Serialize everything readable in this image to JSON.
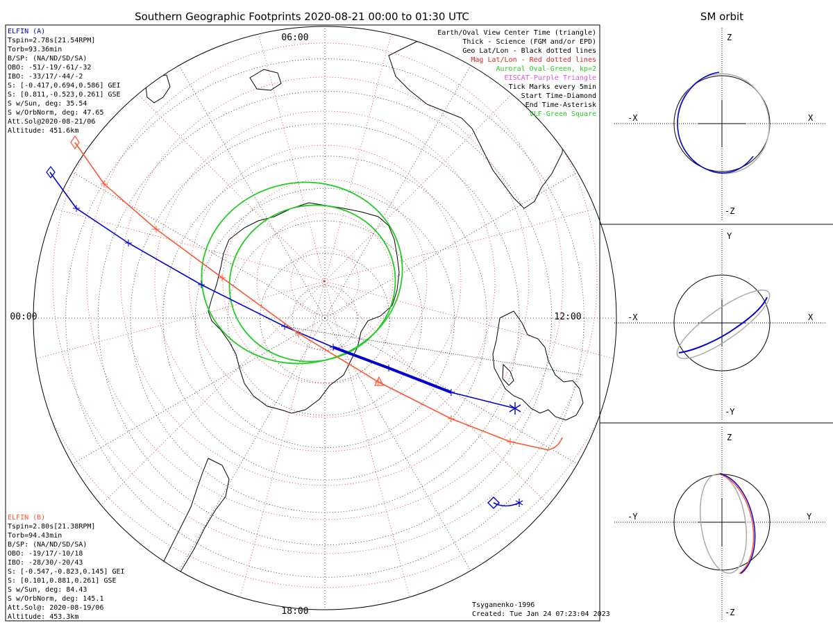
{
  "title": "Southern Geographic Footprints 2020-08-21 00:00 to 01:30 UTC",
  "sm_title": "SM orbit",
  "colors": {
    "elfin_a": "#0000cc",
    "elfin_b": "#ff5533",
    "oval": "#22cc22",
    "mag_grid": "#dd2222",
    "geo_grid": "#222222",
    "legend_purple": "#dd55dd",
    "sm_gray": "#aaaaaa"
  },
  "hour_labels": {
    "top": "06:00",
    "left": "00:00",
    "right": "12:00",
    "bottom": "18:00"
  },
  "elfin_a": {
    "lines": [
      "ELFIN (A)",
      "Tspin=2.78s[21.54RPM]",
      "Torb=93.36min",
      "B/SP: (NA/ND/SD/SA)",
      "OBO: -51/-19/-61/-32",
      "IBO: -33/17/-44/-2",
      "S: [-0.417,0.694,0.586] GEI",
      "S: [0.811,-0.523,0.261] GSE",
      "S w/Sun, deg: 35.54",
      "S w/OrbNorm, deg: 47.65",
      "Att.Sol@2020-08-21/06",
      "Altitude: 451.6km"
    ]
  },
  "elfin_b": {
    "lines": [
      "ELFIN (B)",
      "Tspin=2.80s[21.38RPM]",
      "Torb=94.43min",
      "B/SP: (NA/ND/SD/SA)",
      "OBO: -19/17/-10/18",
      "IBO: -28/30/-20/43",
      "S: [-0.547,-0.823,0.145] GEI",
      "S: [0.101,0.881,0.261] GSE",
      "S w/Sun, deg: 84.43",
      "S w/OrbNorm, deg: 145.1",
      "Att.Sol@: 2020-08-19/06",
      "Altitude: 453.3km"
    ]
  },
  "legend": [
    {
      "text": "Earth/Oval View Center Time (triangle)",
      "color": "#000000"
    },
    {
      "text": "Thick - Science (FGM and/or EPD)",
      "color": "#000000"
    },
    {
      "text": "Geo Lat/Lon - Black dotted lines",
      "color": "#000000"
    },
    {
      "text": "Mag Lat/Lon - Red dotted lines",
      "color": "#dd2222"
    },
    {
      "text": "Auroral Oval-Green, kp=2",
      "color": "#22cc22"
    },
    {
      "text": "EISCAT-Purple Triangle",
      "color": "#dd55dd"
    },
    {
      "text": "Tick Marks every 5min",
      "color": "#000000"
    },
    {
      "text": "Start Time-Diamond",
      "color": "#000000"
    },
    {
      "text": "End Time-Asterisk",
      "color": "#000000"
    },
    {
      "text": "VLF-Green Square",
      "color": "#22cc22"
    }
  ],
  "credits": {
    "model": "Tsyganenko-1996",
    "created": "Created: Tue Jan 24 07:23:04 2023"
  },
  "sm_panels": [
    {
      "top": "Z",
      "bottom": "-Z",
      "left": "-X",
      "right": "X"
    },
    {
      "top": "Y",
      "bottom": "-Y",
      "left": "-X",
      "right": "X"
    },
    {
      "top": "Z",
      "bottom": "-Z",
      "left": "-Y",
      "right": "Y"
    }
  ]
}
